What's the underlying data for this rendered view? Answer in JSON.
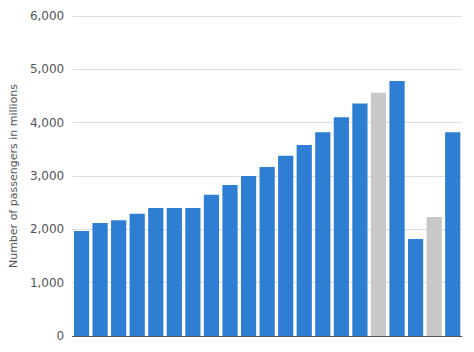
{
  "chart_data": {
    "type": "bar",
    "ylabel": "Number of passengers in millions",
    "categories": [
      null,
      null,
      null,
      null,
      null,
      null,
      null,
      null,
      null,
      null,
      null,
      null,
      null,
      null,
      null,
      null,
      null,
      null,
      null,
      null,
      null
    ],
    "values": [
      1970,
      2120,
      2170,
      2290,
      2400,
      2400,
      2400,
      2650,
      2830,
      3000,
      3170,
      3380,
      3580,
      3820,
      4100,
      4360,
      4560,
      4780,
      1820,
      2230,
      3820
    ],
    "colors": [
      "#2e7fd4",
      "#2e7fd4",
      "#2e7fd4",
      "#2e7fd4",
      "#2e7fd4",
      "#2e7fd4",
      "#2e7fd4",
      "#2e7fd4",
      "#2e7fd4",
      "#2e7fd4",
      "#2e7fd4",
      "#2e7fd4",
      "#2e7fd4",
      "#2e7fd4",
      "#2e7fd4",
      "#2e7fd4",
      "#c8c8c8",
      "#2e7fd4",
      "#2e7fd4",
      "#c8c8c8",
      "#2e7fd4"
    ],
    "ylim": [
      0,
      6000
    ],
    "yticks": [
      0,
      {
        "value": 1000,
        "label": "1,000"
      },
      {
        "value": 2000,
        "label": "2,000"
      },
      {
        "value": 3000,
        "label": "3,000"
      },
      {
        "value": 4000,
        "label": "4,000"
      },
      {
        "value": 5000,
        "label": "5,000"
      },
      {
        "value": 6000,
        "label": "6,000"
      }
    ],
    "grid": true,
    "tick_labels": "y"
  }
}
